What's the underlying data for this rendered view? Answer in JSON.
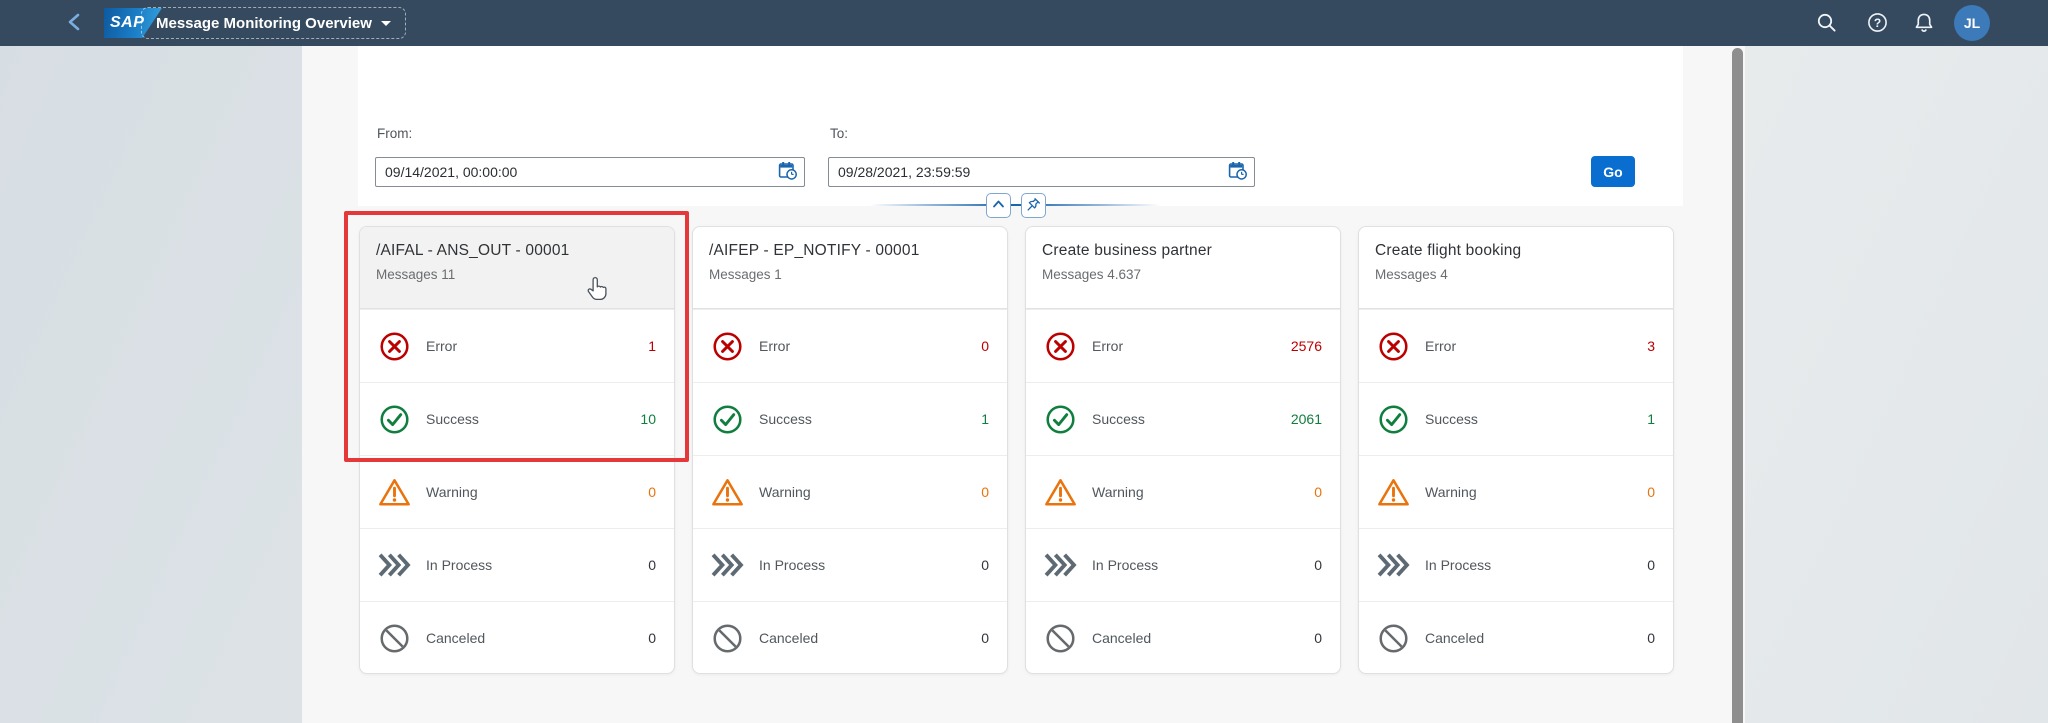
{
  "topbar": {
    "logo_text": "SAP",
    "title": "Message Monitoring Overview",
    "avatar_initials": "JL"
  },
  "filter_bar": {
    "from_label": "From:",
    "from_value": "09/14/2021, 00:00:00",
    "to_label": "To:",
    "to_value": "09/28/2021, 23:59:59",
    "go_label": "Go"
  },
  "cards": [
    {
      "title": "/AIFAL - ANS_OUT - 00001",
      "subtitle": "Messages 11",
      "highlighted": true,
      "header_hovered": true,
      "rows": [
        {
          "label": "Error",
          "value": "1",
          "status": "error"
        },
        {
          "label": "Success",
          "value": "10",
          "status": "success"
        },
        {
          "label": "Warning",
          "value": "0",
          "status": "warning"
        },
        {
          "label": "In Process",
          "value": "0",
          "status": "inprocess"
        },
        {
          "label": "Canceled",
          "value": "0",
          "status": "canceled"
        }
      ]
    },
    {
      "title": "/AIFEP - EP_NOTIFY - 00001",
      "subtitle": "Messages 1",
      "highlighted": false,
      "header_hovered": false,
      "rows": [
        {
          "label": "Error",
          "value": "0",
          "status": "error"
        },
        {
          "label": "Success",
          "value": "1",
          "status": "success"
        },
        {
          "label": "Warning",
          "value": "0",
          "status": "warning"
        },
        {
          "label": "In Process",
          "value": "0",
          "status": "inprocess"
        },
        {
          "label": "Canceled",
          "value": "0",
          "status": "canceled"
        }
      ]
    },
    {
      "title": "Create business partner",
      "subtitle": "Messages 4.637",
      "highlighted": false,
      "header_hovered": false,
      "rows": [
        {
          "label": "Error",
          "value": "2576",
          "status": "error"
        },
        {
          "label": "Success",
          "value": "2061",
          "status": "success"
        },
        {
          "label": "Warning",
          "value": "0",
          "status": "warning"
        },
        {
          "label": "In Process",
          "value": "0",
          "status": "inprocess"
        },
        {
          "label": "Canceled",
          "value": "0",
          "status": "canceled"
        }
      ]
    },
    {
      "title": "Create flight booking",
      "subtitle": "Messages 4",
      "highlighted": false,
      "header_hovered": false,
      "rows": [
        {
          "label": "Error",
          "value": "3",
          "status": "error"
        },
        {
          "label": "Success",
          "value": "1",
          "status": "success"
        },
        {
          "label": "Warning",
          "value": "0",
          "status": "warning"
        },
        {
          "label": "In Process",
          "value": "0",
          "status": "inprocess"
        },
        {
          "label": "Canceled",
          "value": "0",
          "status": "canceled"
        }
      ]
    }
  ],
  "colors": {
    "shell_header": "#354a5f",
    "accent": "#0a6ed1",
    "status_error": "#bb0000",
    "status_success": "#107e3e",
    "status_warning": "#e9730c",
    "status_neutral": "#32363a",
    "highlight_box": "#e5383b"
  }
}
